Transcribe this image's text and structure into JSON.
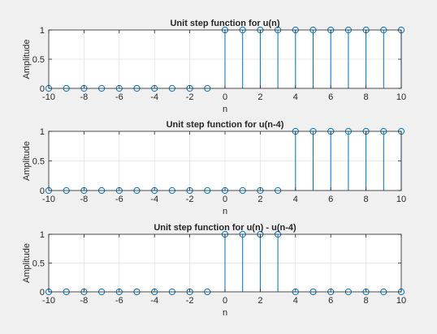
{
  "figure": {
    "background": "#f0f0f0"
  },
  "style": {
    "axes_bg": "#ffffff",
    "axes_border": "#262626",
    "grid": "#e3e3e3",
    "stem": "#0072bd",
    "text": "#262626"
  },
  "chart_data": [
    {
      "type": "stem",
      "title": "Unit step function for u(n)",
      "xlabel": "n",
      "ylabel": "Amplitude",
      "xlim": [
        -10,
        10
      ],
      "ylim": [
        0,
        1
      ],
      "xticks": [
        -10,
        -8,
        -6,
        -4,
        -2,
        0,
        2,
        4,
        6,
        8,
        10
      ],
      "yticks": [
        0,
        0.5,
        1
      ],
      "grid": true,
      "x": [
        -10,
        -9,
        -8,
        -7,
        -6,
        -5,
        -4,
        -3,
        -2,
        -1,
        0,
        1,
        2,
        3,
        4,
        5,
        6,
        7,
        8,
        9,
        10
      ],
      "y": [
        0,
        0,
        0,
        0,
        0,
        0,
        0,
        0,
        0,
        0,
        1,
        1,
        1,
        1,
        1,
        1,
        1,
        1,
        1,
        1,
        1
      ]
    },
    {
      "type": "stem",
      "title": "Unit step function for u(n-4)",
      "xlabel": "n",
      "ylabel": "Amplitude",
      "xlim": [
        -10,
        10
      ],
      "ylim": [
        0,
        1
      ],
      "xticks": [
        -10,
        -8,
        -6,
        -4,
        -2,
        0,
        2,
        4,
        6,
        8,
        10
      ],
      "yticks": [
        0,
        0.5,
        1
      ],
      "grid": true,
      "x": [
        -10,
        -9,
        -8,
        -7,
        -6,
        -5,
        -4,
        -3,
        -2,
        -1,
        0,
        1,
        2,
        3,
        4,
        5,
        6,
        7,
        8,
        9,
        10
      ],
      "y": [
        0,
        0,
        0,
        0,
        0,
        0,
        0,
        0,
        0,
        0,
        0,
        0,
        0,
        0,
        1,
        1,
        1,
        1,
        1,
        1,
        1
      ]
    },
    {
      "type": "stem",
      "title": "Unit step function for u(n) - u(n-4)",
      "xlabel": "n",
      "ylabel": "Amplitude",
      "xlim": [
        -10,
        10
      ],
      "ylim": [
        0,
        1
      ],
      "xticks": [
        -10,
        -8,
        -6,
        -4,
        -2,
        0,
        2,
        4,
        6,
        8,
        10
      ],
      "yticks": [
        0,
        0.5,
        1
      ],
      "grid": true,
      "x": [
        -10,
        -9,
        -8,
        -7,
        -6,
        -5,
        -4,
        -3,
        -2,
        -1,
        0,
        1,
        2,
        3,
        4,
        5,
        6,
        7,
        8,
        9,
        10
      ],
      "y": [
        0,
        0,
        0,
        0,
        0,
        0,
        0,
        0,
        0,
        0,
        1,
        1,
        1,
        1,
        0,
        0,
        0,
        0,
        0,
        0,
        0
      ]
    }
  ]
}
